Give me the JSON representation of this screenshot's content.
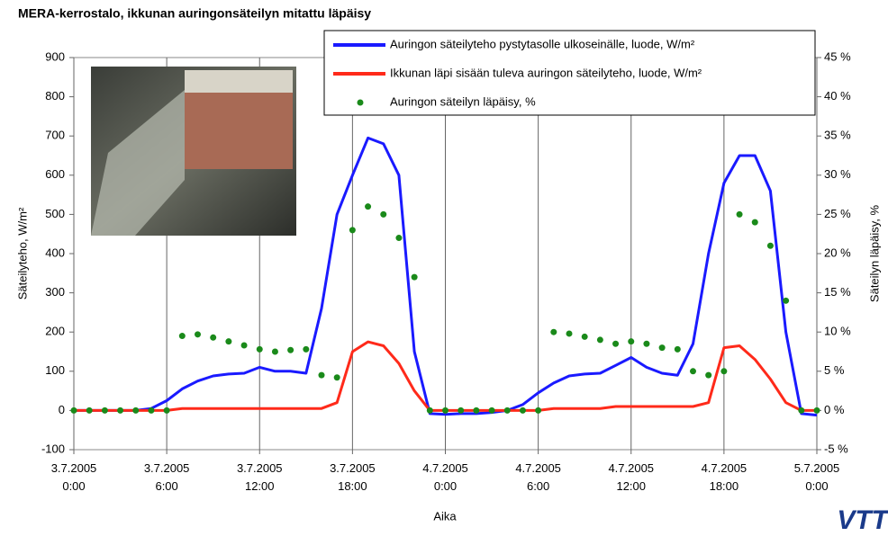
{
  "chart_data": {
    "type": "line",
    "title": "MERA-kerrostalo, ikkunan auringonsäteilyn mitattu läpäisy",
    "xlabel": "Aika",
    "ylabel": "Säteilyteho, W/m²",
    "y2label": "Säteilyn läpäisy, %",
    "logo": "VTT",
    "x": [
      0,
      1,
      2,
      3,
      4,
      5,
      6,
      7,
      8,
      9,
      10,
      11,
      12,
      13,
      14,
      15,
      16,
      17,
      18,
      19,
      20,
      21,
      22,
      23,
      24,
      25,
      26,
      27,
      28,
      29,
      30,
      31,
      32,
      33,
      34,
      35,
      36,
      37,
      38,
      39,
      40,
      41,
      42,
      43,
      44,
      45,
      46,
      47,
      48
    ],
    "xlim": [
      0,
      48
    ],
    "xticks": [
      {
        "value": 0,
        "label": "3.7.2005 0:00"
      },
      {
        "value": 6,
        "label": "3.7.2005 6:00"
      },
      {
        "value": 12,
        "label": "3.7.2005 12:00"
      },
      {
        "value": 18,
        "label": "3.7.2005 18:00"
      },
      {
        "value": 24,
        "label": "4.7.2005 0:00"
      },
      {
        "value": 30,
        "label": "4.7.2005 6:00"
      },
      {
        "value": 36,
        "label": "4.7.2005 12:00"
      },
      {
        "value": 42,
        "label": "4.7.2005 18:00"
      },
      {
        "value": 48,
        "label": "5.7.2005 0:00"
      }
    ],
    "ylim": [
      -100,
      900
    ],
    "yticks": [
      -100,
      0,
      100,
      200,
      300,
      400,
      500,
      600,
      700,
      800,
      900
    ],
    "y2lim": [
      -5,
      45
    ],
    "y2ticks": [
      {
        "value": -5,
        "label": "-5 %"
      },
      {
        "value": 0,
        "label": "0 %"
      },
      {
        "value": 5,
        "label": "5 %"
      },
      {
        "value": 10,
        "label": "10 %"
      },
      {
        "value": 15,
        "label": "15 %"
      },
      {
        "value": 20,
        "label": "20 %"
      },
      {
        "value": 25,
        "label": "25 %"
      },
      {
        "value": 30,
        "label": "30 %"
      },
      {
        "value": 35,
        "label": "35 %"
      },
      {
        "value": 40,
        "label": "40 %"
      },
      {
        "value": 45,
        "label": "45 %"
      }
    ],
    "grid": "x",
    "series": [
      {
        "name": "Auringon säteilyteho pystytasolle ulkoseinälle, luode, W/m²",
        "color": "#1a1aff",
        "style": "line",
        "values": [
          0,
          0,
          0,
          0,
          0,
          5,
          25,
          55,
          75,
          88,
          93,
          95,
          110,
          100,
          100,
          95,
          260,
          500,
          600,
          695,
          680,
          600,
          150,
          -8,
          -10,
          -8,
          -8,
          -5,
          0,
          15,
          45,
          70,
          88,
          93,
          95,
          115,
          135,
          110,
          95,
          90,
          170,
          400,
          580,
          650,
          650,
          560,
          200,
          -8,
          -12
        ]
      },
      {
        "name": "Ikkunan läpi sisään tuleva auringon säteilyteho, luode, W/m²",
        "color": "#ff2a1a",
        "style": "line",
        "values": [
          0,
          0,
          0,
          0,
          0,
          0,
          0,
          5,
          5,
          5,
          5,
          5,
          5,
          5,
          5,
          5,
          5,
          20,
          150,
          175,
          165,
          120,
          50,
          0,
          0,
          0,
          0,
          0,
          0,
          0,
          0,
          5,
          5,
          5,
          5,
          10,
          10,
          10,
          10,
          10,
          10,
          20,
          160,
          165,
          130,
          80,
          20,
          0,
          0
        ]
      },
      {
        "name": "Auringon säteilyn läpäisy, %",
        "color": "#1a8a1a",
        "style": "dots",
        "axis": "y2",
        "values": [
          0,
          0,
          0,
          0,
          0,
          0,
          0,
          9.5,
          9.7,
          9.3,
          8.8,
          8.3,
          7.8,
          7.5,
          7.7,
          7.8,
          4.5,
          4.2,
          23,
          26,
          25,
          22,
          17,
          0,
          0,
          0,
          0,
          0,
          0,
          0,
          0,
          10,
          9.8,
          9.4,
          9,
          8.5,
          8.8,
          8.5,
          8,
          7.8,
          5,
          4.5,
          5,
          25,
          24,
          21,
          14,
          0,
          0
        ]
      }
    ]
  }
}
